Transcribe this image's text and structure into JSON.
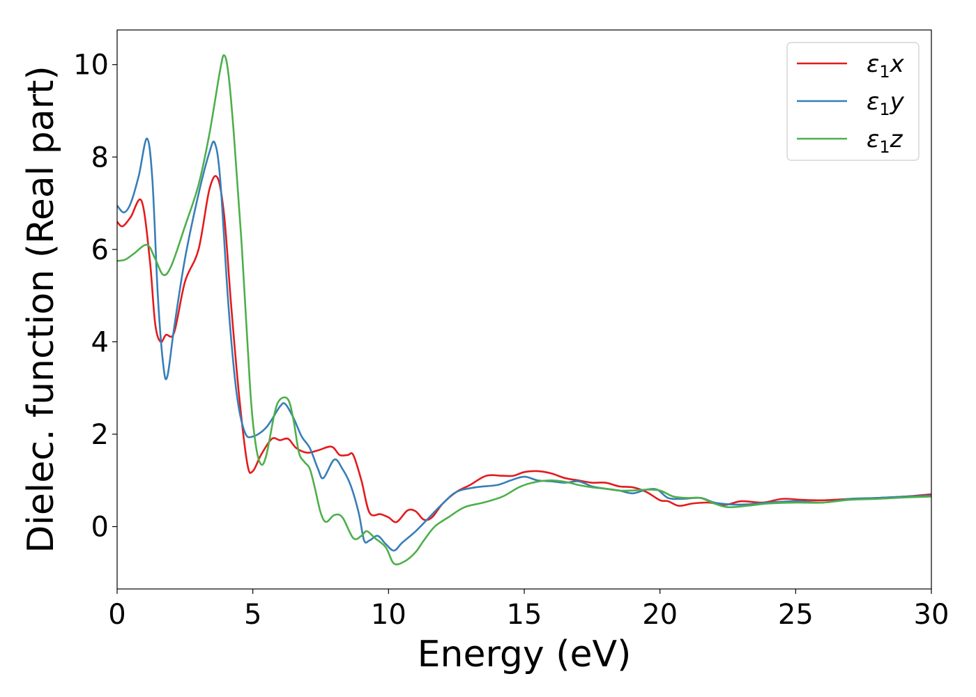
{
  "chart_data": {
    "type": "line",
    "xlabel": "Energy (eV)",
    "ylabel": "Dielec. function (Real part)",
    "xlim": [
      0,
      30
    ],
    "ylim": [
      -1.35,
      10.75
    ],
    "xticks": [
      0,
      5,
      10,
      15,
      20,
      25,
      30
    ],
    "yticks": [
      0,
      2,
      4,
      6,
      8,
      10
    ],
    "grid": false,
    "legend_position": "top-right",
    "series": [
      {
        "name": "ε1x",
        "legend_main": "ε",
        "legend_sub": "1",
        "legend_suffix": "x",
        "color": "#e41a1c",
        "points": [
          [
            0,
            6.6
          ],
          [
            0.2,
            6.5
          ],
          [
            0.5,
            6.7
          ],
          [
            0.9,
            7.05
          ],
          [
            1.2,
            5.8
          ],
          [
            1.4,
            4.4
          ],
          [
            1.6,
            4.0
          ],
          [
            1.8,
            4.15
          ],
          [
            2.1,
            4.2
          ],
          [
            2.5,
            5.3
          ],
          [
            3.0,
            6.0
          ],
          [
            3.4,
            7.3
          ],
          [
            3.7,
            7.55
          ],
          [
            3.95,
            6.7
          ],
          [
            4.2,
            4.8
          ],
          [
            4.5,
            2.8
          ],
          [
            4.8,
            1.35
          ],
          [
            5.0,
            1.2
          ],
          [
            5.3,
            1.55
          ],
          [
            5.7,
            1.9
          ],
          [
            6.0,
            1.87
          ],
          [
            6.3,
            1.9
          ],
          [
            6.6,
            1.7
          ],
          [
            7.0,
            1.6
          ],
          [
            7.4,
            1.65
          ],
          [
            7.9,
            1.73
          ],
          [
            8.2,
            1.55
          ],
          [
            8.5,
            1.55
          ],
          [
            8.7,
            1.55
          ],
          [
            9.0,
            1.0
          ],
          [
            9.3,
            0.3
          ],
          [
            9.7,
            0.27
          ],
          [
            10.0,
            0.2
          ],
          [
            10.3,
            0.1
          ],
          [
            10.7,
            0.35
          ],
          [
            11.0,
            0.33
          ],
          [
            11.3,
            0.15
          ],
          [
            11.6,
            0.2
          ],
          [
            12.0,
            0.5
          ],
          [
            12.5,
            0.75
          ],
          [
            13.0,
            0.9
          ],
          [
            13.6,
            1.1
          ],
          [
            14.2,
            1.1
          ],
          [
            14.6,
            1.1
          ],
          [
            15.0,
            1.18
          ],
          [
            15.5,
            1.2
          ],
          [
            16.0,
            1.15
          ],
          [
            16.5,
            1.05
          ],
          [
            17.0,
            1.0
          ],
          [
            17.5,
            0.95
          ],
          [
            18.0,
            0.95
          ],
          [
            18.5,
            0.87
          ],
          [
            19.0,
            0.85
          ],
          [
            19.5,
            0.75
          ],
          [
            20.0,
            0.57
          ],
          [
            20.3,
            0.55
          ],
          [
            20.7,
            0.45
          ],
          [
            21.2,
            0.5
          ],
          [
            21.8,
            0.52
          ],
          [
            22.4,
            0.47
          ],
          [
            23.0,
            0.55
          ],
          [
            23.8,
            0.52
          ],
          [
            24.5,
            0.6
          ],
          [
            25.2,
            0.58
          ],
          [
            26.0,
            0.57
          ],
          [
            27.0,
            0.6
          ],
          [
            28.0,
            0.62
          ],
          [
            29.0,
            0.65
          ],
          [
            30.0,
            0.7
          ]
        ]
      },
      {
        "name": "ε1y",
        "legend_main": "ε",
        "legend_sub": "1",
        "legend_suffix": "y",
        "color": "#377eb8",
        "points": [
          [
            0,
            6.95
          ],
          [
            0.25,
            6.8
          ],
          [
            0.5,
            7.0
          ],
          [
            0.8,
            7.6
          ],
          [
            1.1,
            8.4
          ],
          [
            1.3,
            7.5
          ],
          [
            1.5,
            5.0
          ],
          [
            1.7,
            3.5
          ],
          [
            1.85,
            3.25
          ],
          [
            2.1,
            4.3
          ],
          [
            2.5,
            5.8
          ],
          [
            3.0,
            7.2
          ],
          [
            3.4,
            8.1
          ],
          [
            3.6,
            8.3
          ],
          [
            3.8,
            7.5
          ],
          [
            4.1,
            4.8
          ],
          [
            4.4,
            2.9
          ],
          [
            4.7,
            2.05
          ],
          [
            5.0,
            1.95
          ],
          [
            5.5,
            2.15
          ],
          [
            6.0,
            2.6
          ],
          [
            6.2,
            2.65
          ],
          [
            6.5,
            2.35
          ],
          [
            6.8,
            1.95
          ],
          [
            7.1,
            1.7
          ],
          [
            7.4,
            1.25
          ],
          [
            7.6,
            1.05
          ],
          [
            8.0,
            1.45
          ],
          [
            8.3,
            1.25
          ],
          [
            8.6,
            0.9
          ],
          [
            8.9,
            0.3
          ],
          [
            9.1,
            -0.3
          ],
          [
            9.3,
            -0.3
          ],
          [
            9.6,
            -0.2
          ],
          [
            9.9,
            -0.38
          ],
          [
            10.2,
            -0.52
          ],
          [
            10.5,
            -0.35
          ],
          [
            11.0,
            -0.1
          ],
          [
            11.5,
            0.2
          ],
          [
            12.0,
            0.5
          ],
          [
            12.5,
            0.75
          ],
          [
            13.2,
            0.85
          ],
          [
            14.0,
            0.9
          ],
          [
            14.5,
            1.0
          ],
          [
            15.0,
            1.08
          ],
          [
            15.5,
            1.0
          ],
          [
            16.0,
            0.98
          ],
          [
            16.5,
            0.95
          ],
          [
            17.0,
            0.98
          ],
          [
            17.5,
            0.87
          ],
          [
            18.0,
            0.82
          ],
          [
            18.5,
            0.78
          ],
          [
            19.0,
            0.72
          ],
          [
            19.5,
            0.8
          ],
          [
            19.9,
            0.8
          ],
          [
            20.3,
            0.62
          ],
          [
            20.8,
            0.6
          ],
          [
            21.5,
            0.62
          ],
          [
            22.0,
            0.52
          ],
          [
            22.6,
            0.48
          ],
          [
            23.2,
            0.48
          ],
          [
            24.0,
            0.52
          ],
          [
            25.0,
            0.55
          ],
          [
            26.0,
            0.52
          ],
          [
            27.0,
            0.6
          ],
          [
            28.0,
            0.62
          ],
          [
            29.0,
            0.65
          ],
          [
            30.0,
            0.67
          ]
        ]
      },
      {
        "name": "ε1z",
        "legend_main": "ε",
        "legend_sub": "1",
        "legend_suffix": "z",
        "color": "#4daf4a",
        "points": [
          [
            0,
            5.75
          ],
          [
            0.3,
            5.78
          ],
          [
            0.6,
            5.9
          ],
          [
            1.1,
            6.1
          ],
          [
            1.4,
            5.8
          ],
          [
            1.7,
            5.45
          ],
          [
            2.0,
            5.65
          ],
          [
            2.5,
            6.5
          ],
          [
            3.0,
            7.4
          ],
          [
            3.4,
            8.5
          ],
          [
            3.8,
            9.9
          ],
          [
            3.95,
            10.2
          ],
          [
            4.1,
            9.8
          ],
          [
            4.3,
            8.5
          ],
          [
            4.6,
            6.0
          ],
          [
            4.9,
            3.0
          ],
          [
            5.1,
            1.8
          ],
          [
            5.3,
            1.35
          ],
          [
            5.5,
            1.55
          ],
          [
            5.8,
            2.45
          ],
          [
            6.0,
            2.75
          ],
          [
            6.3,
            2.75
          ],
          [
            6.5,
            2.3
          ],
          [
            6.7,
            1.6
          ],
          [
            6.9,
            1.4
          ],
          [
            7.1,
            1.25
          ],
          [
            7.3,
            0.8
          ],
          [
            7.5,
            0.3
          ],
          [
            7.7,
            0.1
          ],
          [
            8.0,
            0.25
          ],
          [
            8.3,
            0.2
          ],
          [
            8.7,
            -0.25
          ],
          [
            9.0,
            -0.2
          ],
          [
            9.2,
            -0.1
          ],
          [
            9.5,
            -0.25
          ],
          [
            9.9,
            -0.45
          ],
          [
            10.2,
            -0.8
          ],
          [
            10.6,
            -0.75
          ],
          [
            11.0,
            -0.55
          ],
          [
            11.3,
            -0.3
          ],
          [
            11.7,
            0.0
          ],
          [
            12.2,
            0.2
          ],
          [
            12.8,
            0.42
          ],
          [
            13.5,
            0.52
          ],
          [
            14.2,
            0.65
          ],
          [
            14.8,
            0.85
          ],
          [
            15.3,
            0.95
          ],
          [
            15.9,
            1.0
          ],
          [
            16.5,
            0.97
          ],
          [
            17.0,
            0.9
          ],
          [
            17.5,
            0.85
          ],
          [
            18.0,
            0.82
          ],
          [
            18.5,
            0.78
          ],
          [
            19.0,
            0.78
          ],
          [
            19.5,
            0.8
          ],
          [
            20.0,
            0.78
          ],
          [
            20.5,
            0.65
          ],
          [
            21.0,
            0.62
          ],
          [
            21.5,
            0.62
          ],
          [
            22.0,
            0.5
          ],
          [
            22.5,
            0.42
          ],
          [
            23.2,
            0.45
          ],
          [
            24.0,
            0.5
          ],
          [
            25.0,
            0.52
          ],
          [
            26.0,
            0.52
          ],
          [
            27.0,
            0.58
          ],
          [
            28.0,
            0.6
          ],
          [
            29.0,
            0.63
          ],
          [
            30.0,
            0.65
          ]
        ]
      }
    ]
  }
}
